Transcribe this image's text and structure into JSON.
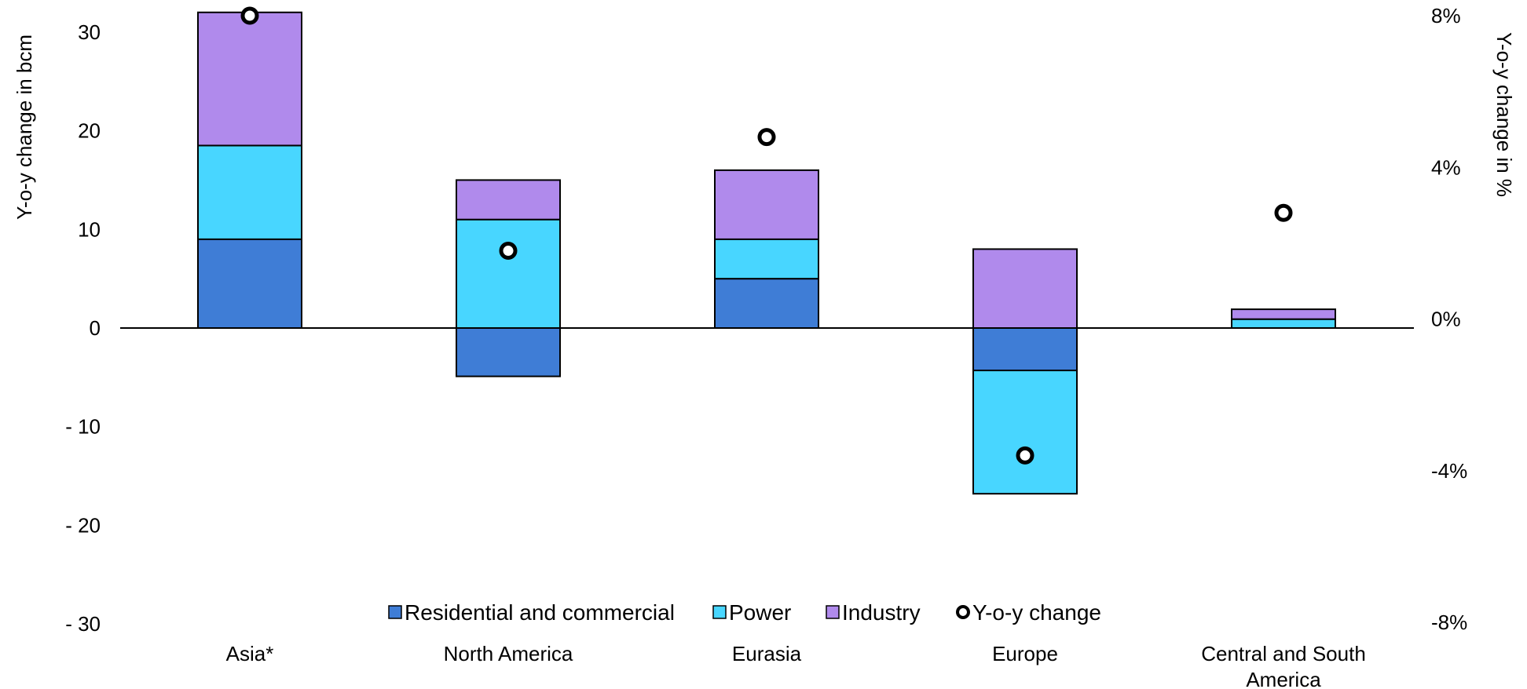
{
  "chart_data": {
    "type": "bar",
    "stacked": true,
    "title": "",
    "categories": [
      [
        "Asia*"
      ],
      [
        "North America"
      ],
      [
        "Eurasia"
      ],
      [
        "Europe"
      ],
      [
        "Central and South",
        "America"
      ]
    ],
    "series": [
      {
        "name": "Residential and commercial",
        "color": "#3f7dd6",
        "values": [
          9,
          -4.9,
          5,
          -4.3,
          0
        ]
      },
      {
        "name": "Power",
        "color": "#48d6ff",
        "values": [
          9.5,
          11,
          4,
          -12.5,
          0.9
        ]
      },
      {
        "name": "Industry",
        "color": "#b08aec",
        "values": [
          13.5,
          4,
          7,
          8,
          1
        ]
      }
    ],
    "secondary_series": {
      "name": "Y-o-y change",
      "type": "scatter",
      "values_pct": [
        8,
        1.8,
        4.8,
        -3.6,
        2.8
      ]
    },
    "ylabel": "Y-o-y change in bcm",
    "ylim": [
      -30,
      32
    ],
    "yticks": [
      "- 30",
      "- 20",
      "- 10",
      "0",
      "10",
      "20",
      "30"
    ],
    "ytick_values": [
      -30,
      -20,
      -10,
      0,
      10,
      20,
      30
    ],
    "y2label": "Y-o-y change in %",
    "y2lim": [
      -8,
      8
    ],
    "y2ticks": [
      "-8%",
      "-4%",
      "0%",
      "4%",
      "8%"
    ],
    "y2tick_values": [
      -8,
      -4,
      0,
      4,
      8
    ],
    "legend": {
      "position": "bottom-center",
      "entries": [
        "Residential and commercial",
        "Power",
        "Industry",
        "Y-o-y change"
      ]
    },
    "grid": false
  }
}
